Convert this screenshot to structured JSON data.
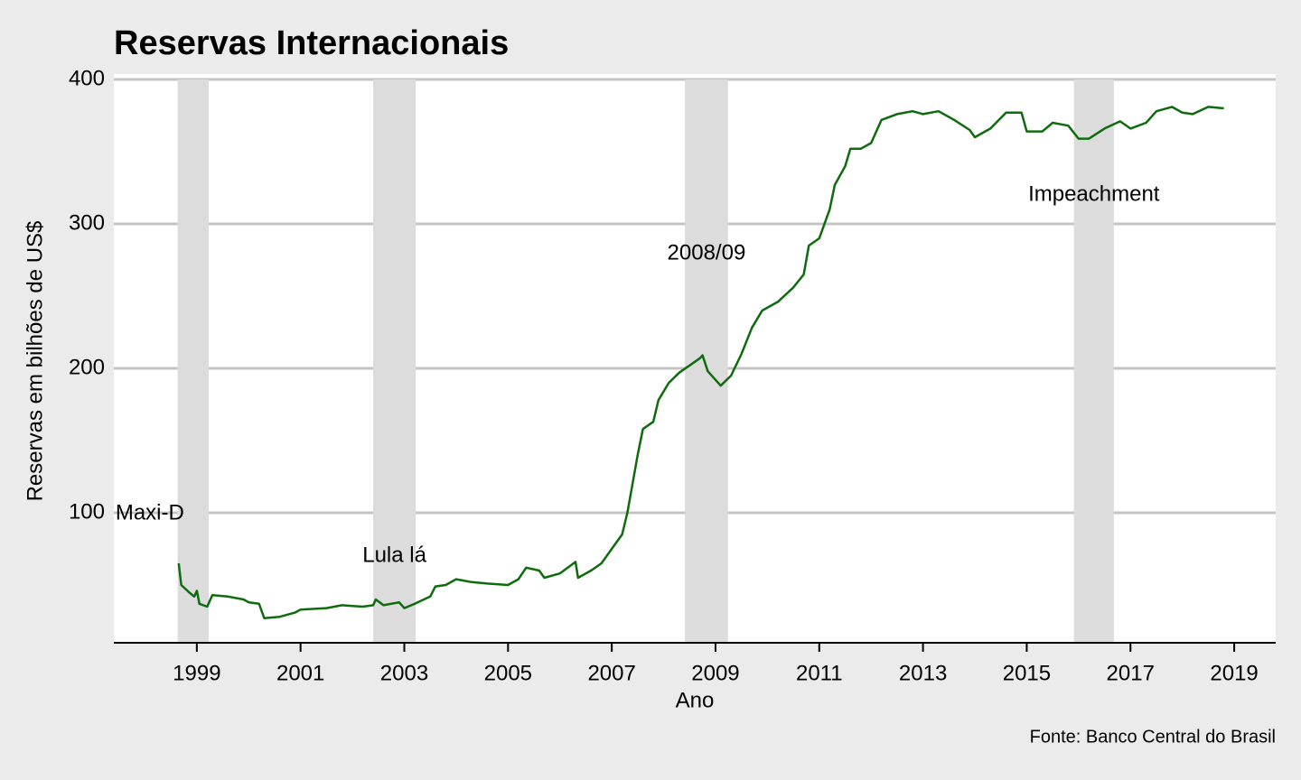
{
  "chart_data": {
    "type": "line",
    "title": "Reservas Internacionais",
    "x_label": "Ano",
    "y_label": "Reservas em bilhões de US$",
    "source": "Fonte: Banco Central do Brasil",
    "xlim": [
      1997.4,
      2019.8
    ],
    "ylim": [
      10,
      400
    ],
    "xticks": [
      1999,
      2001,
      2003,
      2005,
      2007,
      2009,
      2011,
      2013,
      2015,
      2017,
      2019
    ],
    "yticks": [
      100,
      200,
      300,
      400
    ],
    "grid": true,
    "periods": [
      {
        "label": "Maxi-D",
        "start": 1998.63,
        "end": 1999.23
      },
      {
        "label": "Lula lá",
        "start": 2002.4,
        "end": 2003.22
      },
      {
        "label": "2008/09",
        "start": 2008.41,
        "end": 2009.24
      },
      {
        "label": "Impeachment",
        "start": 2015.91,
        "end": 2016.68
      }
    ],
    "series": [
      {
        "color": "#0e6b0e",
        "x": [
          1998.65,
          1998.7,
          1998.85,
          1998.95,
          1999.0,
          1999.05,
          1999.2,
          1999.3,
          1999.6,
          1999.9,
          2000.0,
          2000.2,
          2000.3,
          2000.6,
          2000.9,
          2001.0,
          2001.5,
          2001.8,
          2002.2,
          2002.4,
          2002.45,
          2002.6,
          2002.9,
          2003.0,
          2003.2,
          2003.5,
          2003.6,
          2003.8,
          2004.0,
          2004.3,
          2004.6,
          2005.0,
          2005.2,
          2005.35,
          2005.6,
          2005.7,
          2006.0,
          2006.3,
          2006.35,
          2006.6,
          2006.8,
          2007.0,
          2007.2,
          2007.3,
          2007.4,
          2007.5,
          2007.6,
          2007.8,
          2007.9,
          2008.1,
          2008.3,
          2008.5,
          2008.7,
          2008.75,
          2008.85,
          2009.0,
          2009.1,
          2009.3,
          2009.5,
          2009.7,
          2009.9,
          2010.2,
          2010.5,
          2010.7,
          2010.8,
          2011.0,
          2011.2,
          2011.3,
          2011.5,
          2011.6,
          2011.8,
          2012.0,
          2012.2,
          2012.5,
          2012.8,
          2013.0,
          2013.3,
          2013.6,
          2013.9,
          2014.0,
          2014.3,
          2014.6,
          2014.9,
          2015.0,
          2015.3,
          2015.5,
          2015.8,
          2016.0,
          2016.2,
          2016.5,
          2016.8,
          2017.0,
          2017.3,
          2017.5,
          2017.8,
          2018.0,
          2018.2,
          2018.5,
          2018.8
        ],
        "values": [
          65,
          50,
          45,
          42,
          46,
          37,
          35,
          43,
          42,
          40,
          38,
          37,
          27,
          28,
          31,
          33,
          34,
          36,
          35,
          36,
          40,
          36,
          38,
          34,
          37,
          42,
          49,
          50,
          54,
          52,
          51,
          50,
          54,
          62,
          60,
          55,
          58,
          66,
          55,
          60,
          65,
          75,
          85,
          100,
          120,
          140,
          158,
          163,
          178,
          190,
          197,
          202,
          207,
          209,
          198,
          192,
          188,
          195,
          210,
          228,
          240,
          246,
          256,
          265,
          285,
          290,
          310,
          327,
          340,
          352,
          352,
          356,
          372,
          376,
          378,
          376,
          378,
          372,
          365,
          360,
          366,
          377,
          377,
          364,
          364,
          370,
          368,
          359,
          359,
          366,
          371,
          366,
          370,
          378,
          381,
          377,
          376,
          381,
          380
        ]
      }
    ]
  }
}
